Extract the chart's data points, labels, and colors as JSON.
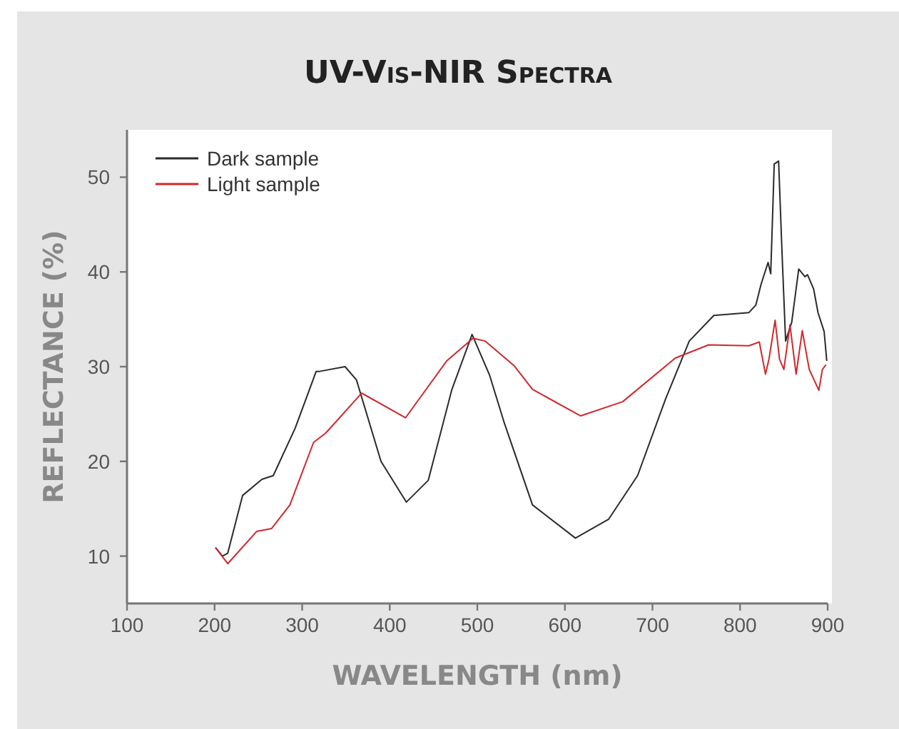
{
  "chart_data": {
    "type": "line",
    "title": "UV-Vis-NIR Spectra",
    "xlabel": "WAVELENGTH (nm)",
    "ylabel": "REFLECTANCE (%)",
    "xlim": [
      100,
      900
    ],
    "xticks": [
      100,
      200,
      300,
      400,
      500,
      600,
      700,
      800,
      900
    ],
    "ylim": [
      5,
      55
    ],
    "yticks": [
      10,
      20,
      30,
      40,
      50
    ],
    "grid": false,
    "legend": "top left",
    "line_style": "solid",
    "series": [
      {
        "name": "Dark sample",
        "color": "#2b2b2b",
        "x": [
          201,
          209,
          215,
          232,
          254,
          267,
          292,
          316,
          320,
          349,
          362,
          390,
          419,
          444,
          471,
          494,
          514,
          531,
          563,
          612,
          650,
          683,
          715,
          742,
          770,
          810,
          818,
          824,
          832,
          835,
          839,
          844,
          848,
          852,
          859,
          867,
          874,
          877,
          884,
          889,
          896,
          899
        ],
        "values": [
          10.9,
          10.0,
          10.3,
          16.4,
          18.1,
          18.5,
          23.5,
          29.5,
          29.5,
          30.0,
          28.6,
          20.0,
          15.7,
          18.0,
          27.6,
          33.4,
          29.1,
          24.0,
          15.4,
          11.9,
          13.9,
          18.5,
          26.6,
          32.7,
          35.4,
          35.7,
          36.5,
          38.7,
          41.0,
          39.8,
          51.4,
          51.7,
          41.8,
          32.7,
          34.7,
          40.3,
          39.5,
          39.7,
          38.2,
          35.7,
          33.7,
          30.6
        ]
      },
      {
        "name": "Light sample",
        "color": "#d0282c",
        "x": [
          201,
          215,
          248,
          265,
          286,
          313,
          327,
          368,
          418,
          465,
          495,
          509,
          542,
          563,
          618,
          666,
          726,
          764,
          810,
          822,
          829,
          833,
          840,
          845,
          850,
          857,
          864,
          871,
          879,
          885,
          890,
          894,
          898
        ],
        "values": [
          10.9,
          9.2,
          12.6,
          12.9,
          15.4,
          22.0,
          23.0,
          27.2,
          24.6,
          30.6,
          33.0,
          32.7,
          30.1,
          27.6,
          24.8,
          26.3,
          30.9,
          32.3,
          32.2,
          32.6,
          29.2,
          30.8,
          34.9,
          30.8,
          29.7,
          34.4,
          29.2,
          33.8,
          29.7,
          28.5,
          27.5,
          29.7,
          30.2
        ]
      }
    ]
  }
}
